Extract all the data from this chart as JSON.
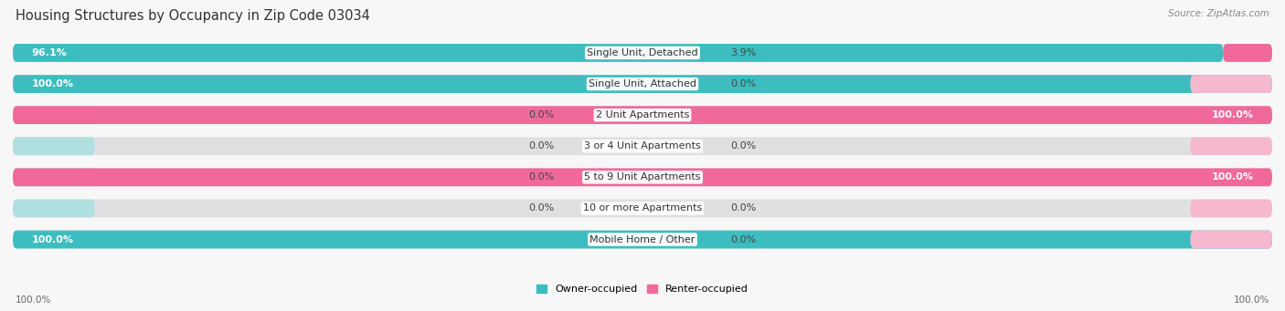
{
  "title": "Housing Structures by Occupancy in Zip Code 03034",
  "source": "Source: ZipAtlas.com",
  "categories": [
    "Single Unit, Detached",
    "Single Unit, Attached",
    "2 Unit Apartments",
    "3 or 4 Unit Apartments",
    "5 to 9 Unit Apartments",
    "10 or more Apartments",
    "Mobile Home / Other"
  ],
  "owner_pct": [
    96.1,
    100.0,
    0.0,
    0.0,
    0.0,
    0.0,
    100.0
  ],
  "renter_pct": [
    3.9,
    0.0,
    100.0,
    0.0,
    100.0,
    0.0,
    0.0
  ],
  "owner_color": "#3dbdc0",
  "renter_color": "#f0699a",
  "owner_color_light": "#b0dfe0",
  "renter_color_light": "#f5b8cf",
  "pill_bg": "#e8e8ea",
  "pill_bg_alt": "#f0f0f2",
  "fig_bg": "#f7f7f7",
  "title_fontsize": 10.5,
  "source_fontsize": 7.5,
  "label_fontsize": 8,
  "category_fontsize": 8,
  "axis_label_fontsize": 7.5,
  "legend_fontsize": 8
}
